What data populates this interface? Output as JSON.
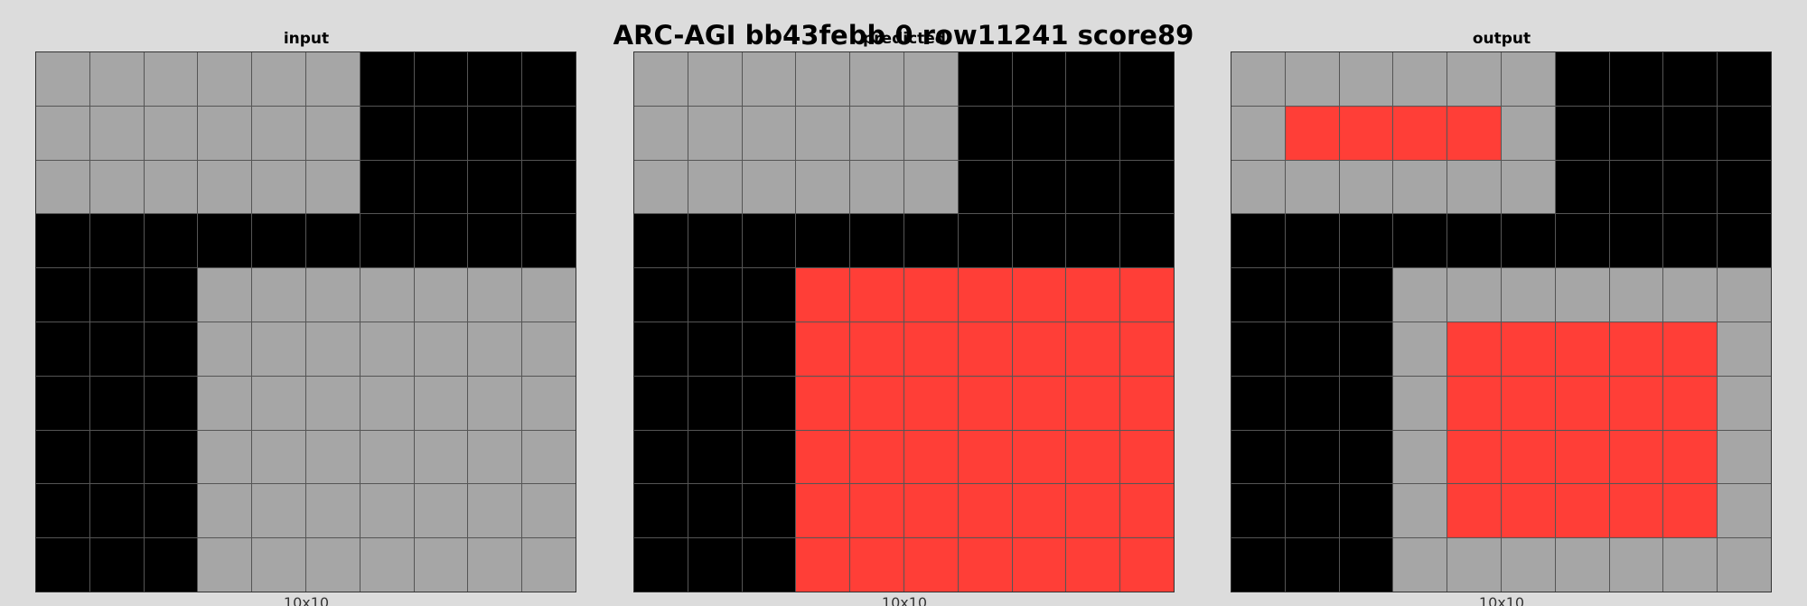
{
  "title": "ARC-AGI bb43febb 0 row11241 score89",
  "palette": {
    "0": "#000000",
    "2": "#ff3e37",
    "5": "#a6a6a6"
  },
  "panels": [
    {
      "title": "input",
      "size_label": "10x10",
      "grid": [
        [
          5,
          5,
          5,
          5,
          5,
          5,
          0,
          0,
          0,
          0
        ],
        [
          5,
          5,
          5,
          5,
          5,
          5,
          0,
          0,
          0,
          0
        ],
        [
          5,
          5,
          5,
          5,
          5,
          5,
          0,
          0,
          0,
          0
        ],
        [
          0,
          0,
          0,
          0,
          0,
          0,
          0,
          0,
          0,
          0
        ],
        [
          0,
          0,
          0,
          5,
          5,
          5,
          5,
          5,
          5,
          5
        ],
        [
          0,
          0,
          0,
          5,
          5,
          5,
          5,
          5,
          5,
          5
        ],
        [
          0,
          0,
          0,
          5,
          5,
          5,
          5,
          5,
          5,
          5
        ],
        [
          0,
          0,
          0,
          5,
          5,
          5,
          5,
          5,
          5,
          5
        ],
        [
          0,
          0,
          0,
          5,
          5,
          5,
          5,
          5,
          5,
          5
        ],
        [
          0,
          0,
          0,
          5,
          5,
          5,
          5,
          5,
          5,
          5
        ]
      ]
    },
    {
      "title": "predicted",
      "size_label": "10x10",
      "grid": [
        [
          5,
          5,
          5,
          5,
          5,
          5,
          0,
          0,
          0,
          0
        ],
        [
          5,
          5,
          5,
          5,
          5,
          5,
          0,
          0,
          0,
          0
        ],
        [
          5,
          5,
          5,
          5,
          5,
          5,
          0,
          0,
          0,
          0
        ],
        [
          0,
          0,
          0,
          0,
          0,
          0,
          0,
          0,
          0,
          0
        ],
        [
          0,
          0,
          0,
          2,
          2,
          2,
          2,
          2,
          2,
          2
        ],
        [
          0,
          0,
          0,
          2,
          2,
          2,
          2,
          2,
          2,
          2
        ],
        [
          0,
          0,
          0,
          2,
          2,
          2,
          2,
          2,
          2,
          2
        ],
        [
          0,
          0,
          0,
          2,
          2,
          2,
          2,
          2,
          2,
          2
        ],
        [
          0,
          0,
          0,
          2,
          2,
          2,
          2,
          2,
          2,
          2
        ],
        [
          0,
          0,
          0,
          2,
          2,
          2,
          2,
          2,
          2,
          2
        ]
      ]
    },
    {
      "title": "output",
      "size_label": "10x10",
      "grid": [
        [
          5,
          5,
          5,
          5,
          5,
          5,
          0,
          0,
          0,
          0
        ],
        [
          5,
          2,
          2,
          2,
          2,
          5,
          0,
          0,
          0,
          0
        ],
        [
          5,
          5,
          5,
          5,
          5,
          5,
          0,
          0,
          0,
          0
        ],
        [
          0,
          0,
          0,
          0,
          0,
          0,
          0,
          0,
          0,
          0
        ],
        [
          0,
          0,
          0,
          5,
          5,
          5,
          5,
          5,
          5,
          5
        ],
        [
          0,
          0,
          0,
          5,
          2,
          2,
          2,
          2,
          2,
          5
        ],
        [
          0,
          0,
          0,
          5,
          2,
          2,
          2,
          2,
          2,
          5
        ],
        [
          0,
          0,
          0,
          5,
          2,
          2,
          2,
          2,
          2,
          5
        ],
        [
          0,
          0,
          0,
          5,
          2,
          2,
          2,
          2,
          2,
          5
        ],
        [
          0,
          0,
          0,
          5,
          5,
          5,
          5,
          5,
          5,
          5
        ]
      ]
    }
  ]
}
